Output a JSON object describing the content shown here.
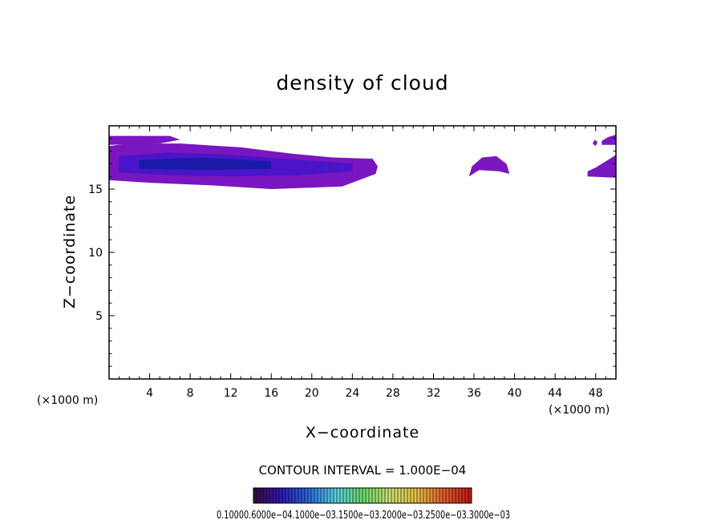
{
  "chart_data": {
    "type": "heatmap",
    "title": "density of cloud",
    "xlabel": "X−coordinate",
    "ylabel": "Z−coordinate",
    "x_unit_label": "(×1000 m)",
    "y_unit_label": "(×1000 m)",
    "xlim": [
      0,
      50
    ],
    "ylim": [
      0,
      20
    ],
    "x_ticks": [
      "4",
      "8",
      "12",
      "16",
      "20",
      "24",
      "28",
      "32",
      "36",
      "40",
      "44",
      "48"
    ],
    "y_ticks": [
      "5",
      "10",
      "15"
    ],
    "contour_interval_text": "CONTOUR INTERVAL = 1.000E−04",
    "colorbar_labels": [
      "0.1000",
      "0.6000e−04",
      "0.1000e−03",
      "0.1500e−03",
      "0.2000e−03",
      "0.2500e−03",
      "0.3000e−03"
    ],
    "colorbar_text": "0.10000.6000e−04.1000e−03.1500e−03.2000e−03.2500e−03.3000e−03",
    "colormap": [
      "#3a0a44",
      "#2b1ab8",
      "#2a6ad8",
      "#5ad0e0",
      "#6ad86a",
      "#c8e070",
      "#e8c040",
      "#e06030",
      "#c01818"
    ],
    "regions": [
      {
        "name": "main-cloud",
        "outline": [
          [
            0,
            15.7
          ],
          [
            4,
            15.5
          ],
          [
            10,
            15.3
          ],
          [
            16,
            15.0
          ],
          [
            23,
            15.2
          ],
          [
            26.3,
            16.2
          ],
          [
            26.5,
            16.8
          ],
          [
            26.0,
            17.4
          ],
          [
            22,
            17.5
          ],
          [
            18,
            17.8
          ],
          [
            13,
            18.3
          ],
          [
            7,
            18.6
          ],
          [
            2,
            18.6
          ],
          [
            0,
            18.4
          ]
        ],
        "core": [
          [
            1,
            16.3
          ],
          [
            6,
            16.1
          ],
          [
            12,
            16.0
          ],
          [
            19,
            16.1
          ],
          [
            24,
            16.4
          ],
          [
            24,
            17.0
          ],
          [
            19,
            17.3
          ],
          [
            12,
            17.7
          ],
          [
            6,
            17.9
          ],
          [
            1,
            17.6
          ]
        ],
        "peak": [
          [
            3,
            16.6
          ],
          [
            9,
            16.5
          ],
          [
            16,
            16.6
          ],
          [
            16,
            17.2
          ],
          [
            9,
            17.5
          ],
          [
            3,
            17.3
          ]
        ],
        "level_fill": "#7a16bf",
        "core_fill": "#4a14c8",
        "peak_fill": "#1a1aa8"
      },
      {
        "name": "top-strip",
        "outline": [
          [
            0,
            18.5
          ],
          [
            5,
            18.6
          ],
          [
            7,
            18.9
          ],
          [
            6,
            19.2
          ],
          [
            0,
            19.2
          ]
        ],
        "level_fill": "#7a16bf"
      },
      {
        "name": "mid-cloud",
        "outline": [
          [
            35.5,
            16.0
          ],
          [
            36.5,
            16.5
          ],
          [
            38.5,
            16.4
          ],
          [
            39.5,
            16.2
          ],
          [
            39.2,
            17.0
          ],
          [
            38.2,
            17.6
          ],
          [
            36.8,
            17.5
          ],
          [
            35.8,
            16.8
          ]
        ],
        "level_fill": "#7a16bf"
      },
      {
        "name": "right-cloud",
        "outline": [
          [
            47.2,
            16.0
          ],
          [
            50,
            15.9
          ],
          [
            50,
            17.7
          ],
          [
            49.2,
            17.3
          ],
          [
            48.0,
            16.7
          ],
          [
            47.2,
            16.4
          ]
        ],
        "level_fill": "#7a16bf"
      },
      {
        "name": "right-top",
        "outline": [
          [
            48.6,
            18.5
          ],
          [
            50,
            18.5
          ],
          [
            50,
            19.3
          ],
          [
            49.2,
            19.1
          ],
          [
            48.6,
            18.8
          ]
        ],
        "level_fill": "#7a16bf"
      },
      {
        "name": "right-dot",
        "outline": [
          [
            47.7,
            18.6
          ],
          [
            48.0,
            18.4
          ],
          [
            48.2,
            18.7
          ],
          [
            47.9,
            18.9
          ]
        ],
        "level_fill": "#7a16bf"
      }
    ]
  }
}
